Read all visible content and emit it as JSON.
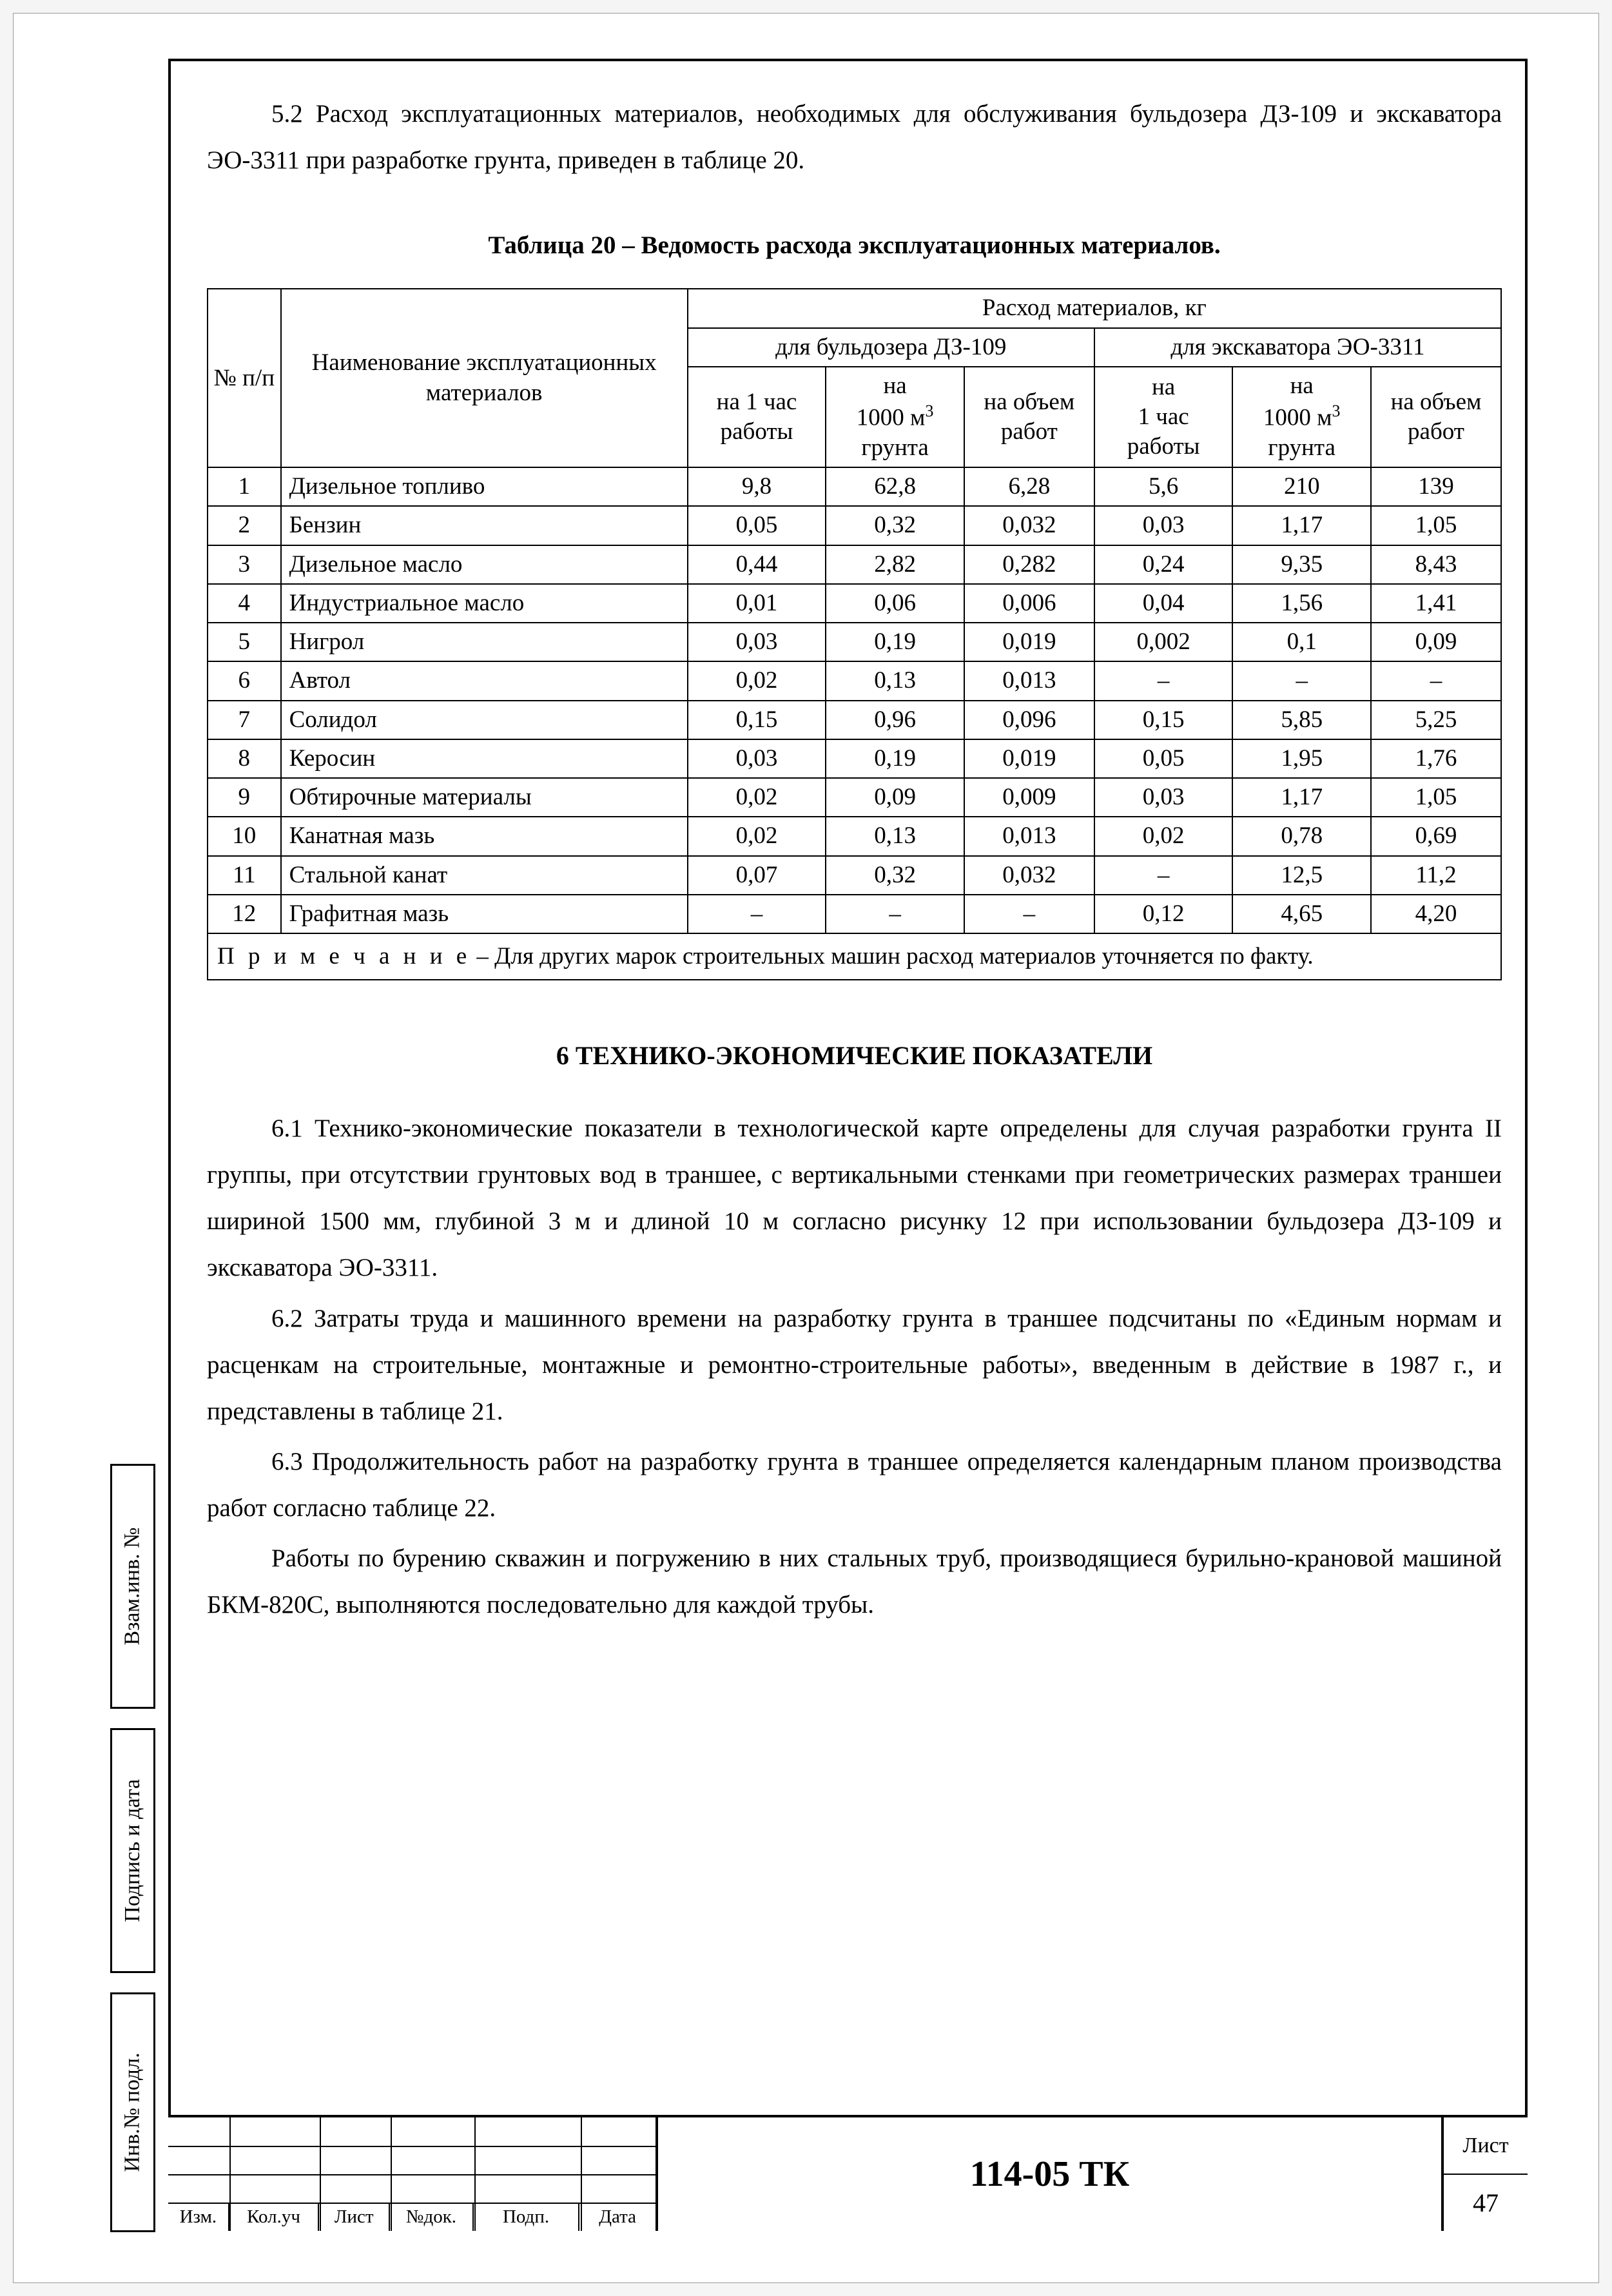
{
  "para_5_2": "5.2 Расход эксплуатационных материалов, необходимых для обслуживания бульдозера ДЗ-109 и экскаватора ЭО-3311 при разработке грунта, приведен в таблице 20.",
  "table20": {
    "title": "Таблица 20 – Ведомость расхода эксплуатационных материалов.",
    "head": {
      "col_no": "№ п/п",
      "col_name": "Наименование эксплуатационных материалов",
      "top": "Расход материалов, кг",
      "sub_bull": "для бульдозера ДЗ-109",
      "sub_exc": "для экскаватора ЭО-3311",
      "h1": "на 1 час работы",
      "h2_a": "на",
      "h2_b": "1000 м",
      "h2_c": "грунта",
      "h3": "на объ­ем ра­бот",
      "h4_a": "на",
      "h4_b": "1 час",
      "h4_c": "работы",
      "h5_a": "на",
      "h5_b": "1000 м",
      "h5_c": "грунта",
      "h6": "на объ­ем ра­бот"
    },
    "rows": [
      {
        "n": "1",
        "name": "Дизельное топливо",
        "v": [
          "9,8",
          "62,8",
          "6,28",
          "5,6",
          "210",
          "139"
        ]
      },
      {
        "n": "2",
        "name": "Бензин",
        "v": [
          "0,05",
          "0,32",
          "0,032",
          "0,03",
          "1,17",
          "1,05"
        ]
      },
      {
        "n": "3",
        "name": "Дизельное масло",
        "v": [
          "0,44",
          "2,82",
          "0,282",
          "0,24",
          "9,35",
          "8,43"
        ]
      },
      {
        "n": "4",
        "name": "Индустриальное масло",
        "v": [
          "0,01",
          "0,06",
          "0,006",
          "0,04",
          "1,56",
          "1,41"
        ]
      },
      {
        "n": "5",
        "name": "Нигрол",
        "v": [
          "0,03",
          "0,19",
          "0,019",
          "0,002",
          "0,1",
          "0,09"
        ]
      },
      {
        "n": "6",
        "name": "Автол",
        "v": [
          "0,02",
          "0,13",
          "0,013",
          "–",
          "–",
          "–"
        ]
      },
      {
        "n": "7",
        "name": "Солидол",
        "v": [
          "0,15",
          "0,96",
          "0,096",
          "0,15",
          "5,85",
          "5,25"
        ]
      },
      {
        "n": "8",
        "name": "Керосин",
        "v": [
          "0,03",
          "0,19",
          "0,019",
          "0,05",
          "1,95",
          "1,76"
        ]
      },
      {
        "n": "9",
        "name": "Обтирочные материалы",
        "v": [
          "0,02",
          "0,09",
          "0,009",
          "0,03",
          "1,17",
          "1,05"
        ]
      },
      {
        "n": "10",
        "name": "Канатная мазь",
        "v": [
          "0,02",
          "0,13",
          "0,013",
          "0,02",
          "0,78",
          "0,69"
        ]
      },
      {
        "n": "11",
        "name": "Стальной канат",
        "v": [
          "0,07",
          "0,32",
          "0,032",
          "–",
          "12,5",
          "11,2"
        ]
      },
      {
        "n": "12",
        "name": "Графитная мазь",
        "v": [
          "–",
          "–",
          "–",
          "0,12",
          "4,65",
          "4,20"
        ]
      }
    ],
    "note_label": "П р и м е ч а н и е",
    "note_text": "  – Для других марок строительных машин расход материалов уточняется по факту."
  },
  "section6": {
    "title": "6  ТЕХНИКО-ЭКОНОМИЧЕСКИЕ ПОКАЗАТЕЛИ",
    "p1": "6.1  Технико-экономические показатели в технологической карте определены для случая разработки грунта II группы, при отсутствии грунтовых вод в траншее, с вертикальными стенками при геометрических размерах траншеи шириной  1500 мм, глубиной 3 м и длиной 10 м согласно рисунку 12 при использовании бульдозера ДЗ-109 и экскаватора ЭО-3311.",
    "p2": "6.2  Затраты труда и машинного времени на разработку грунта в траншее подсчитаны по «Единым нормам и расценкам на строительные, монтажные и ремонтно-строительные работы», введенным в действие в 1987 г., и представлены в таблице 21.",
    "p3": "6.3 Продолжительность работ на разработку грунта в траншее определяется календарным планом производства работ  согласно таблице 22.",
    "p4": "Работы по бурению скважин и погружению в них стальных труб, производящиеся бурильно-крановой машиной БКМ-820С, выполняются последовательно для каждой трубы."
  },
  "side": {
    "s1": "Взам.инв. №",
    "s2": "Подпись и дата",
    "s3": "Инв.№ подл."
  },
  "titleblock": {
    "labels": [
      "Изм.",
      "Кол.уч",
      "Лист",
      "№док.",
      "Подп.",
      "Дата"
    ],
    "doc": "114-05 ТК",
    "sheet_label": "Лист",
    "sheet_no": "47"
  }
}
